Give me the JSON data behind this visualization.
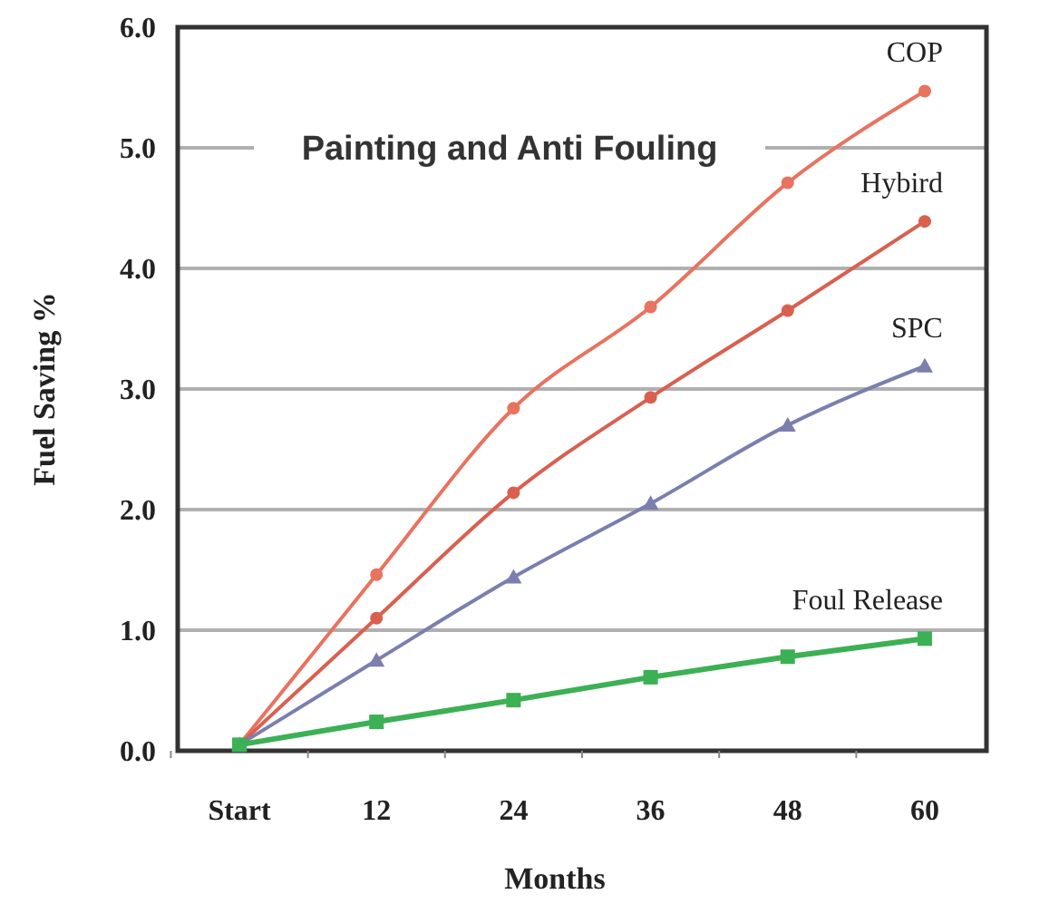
{
  "chart_data": {
    "type": "line",
    "title": "Painting and Anti Fouling",
    "xlabel": "Months",
    "ylabel": "Fuel Saving %",
    "categories": [
      "Start",
      "12",
      "24",
      "36",
      "48",
      "60"
    ],
    "series": [
      {
        "name": "COP",
        "color": "#e8735f",
        "marker": "circle",
        "values": [
          0.05,
          1.46,
          2.84,
          3.68,
          4.71,
          5.47
        ]
      },
      {
        "name": "Hybird",
        "color": "#d9604f",
        "marker": "circle",
        "values": [
          0.05,
          1.1,
          2.14,
          2.93,
          3.65,
          4.39
        ]
      },
      {
        "name": "SPC",
        "color": "#7b7fae",
        "marker": "triangle",
        "values": [
          0.05,
          0.75,
          1.44,
          2.05,
          2.7,
          3.19
        ]
      },
      {
        "name": "Foul Release",
        "color": "#3cb054",
        "marker": "square",
        "values": [
          0.05,
          0.24,
          0.42,
          0.61,
          0.78,
          0.93
        ]
      }
    ],
    "ylim": [
      0,
      6
    ],
    "yticks": [
      {
        "value": 0,
        "label": "0.0"
      },
      {
        "value": 1,
        "label": "1.0"
      },
      {
        "value": 2,
        "label": "2.0"
      },
      {
        "value": 3,
        "label": "3.0"
      },
      {
        "value": 4,
        "label": "4.0"
      },
      {
        "value": 5,
        "label": "5.0"
      },
      {
        "value": 6,
        "label": "6.0"
      }
    ],
    "grid": "y",
    "line_style": "solid"
  }
}
